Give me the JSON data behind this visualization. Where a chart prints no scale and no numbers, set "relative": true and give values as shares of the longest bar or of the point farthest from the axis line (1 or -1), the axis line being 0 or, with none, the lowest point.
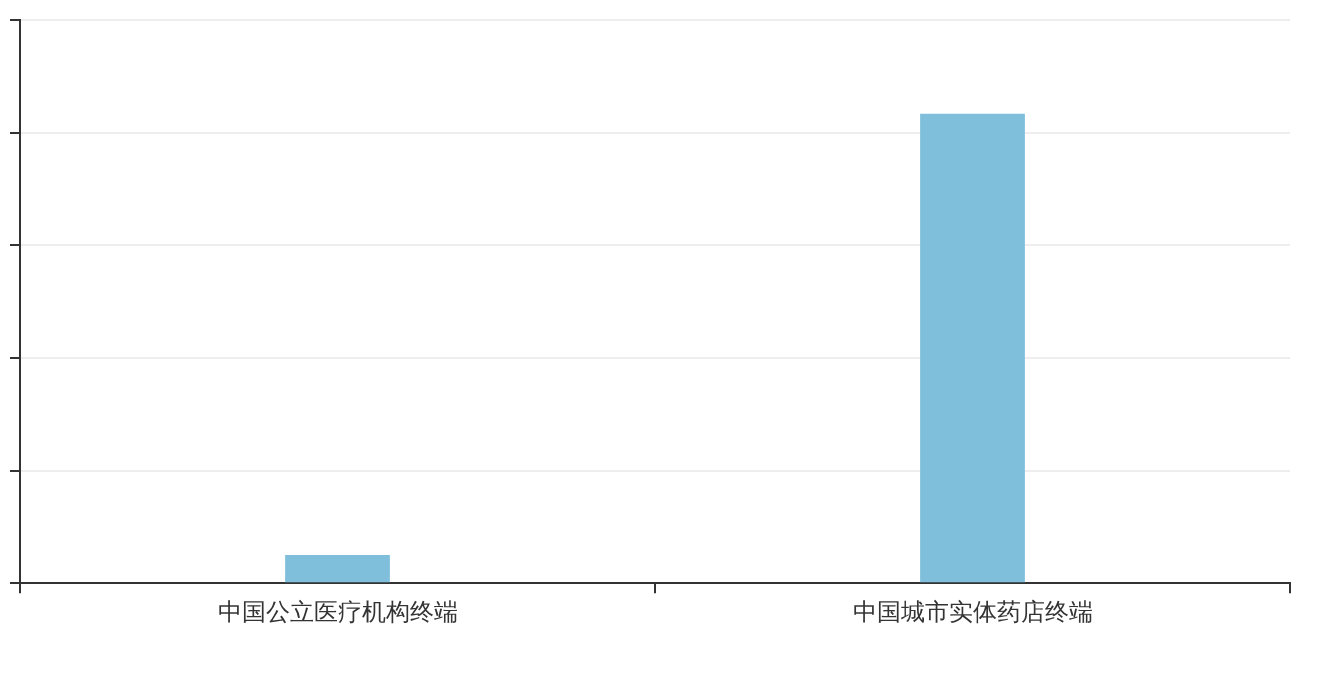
{
  "chart_data": {
    "type": "bar",
    "relative": true,
    "categories": [
      "中国公立医疗机构终端",
      "中国城市实体药店终端"
    ],
    "values": [
      0.06,
      1
    ],
    "color": "#7fbfdc",
    "grid": "y",
    "legend": false
  }
}
